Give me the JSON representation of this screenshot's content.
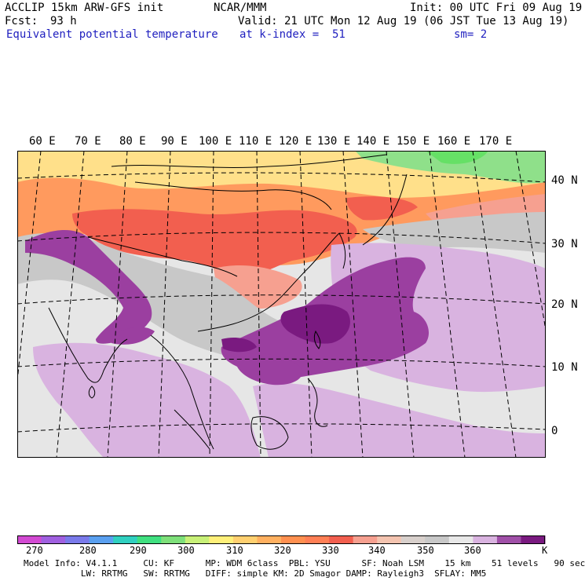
{
  "header": {
    "model": "ACCLIP 15km ARW-GFS init",
    "org": "NCAR/MMM",
    "init": "Init: 00 UTC Fri 09 Aug 19",
    "fcst_label": "Fcst:",
    "fcst_value": "93 h",
    "valid": "Valid: 21 UTC Mon 12 Aug 19 (06 JST Tue 13 Aug 19)",
    "field": "Equivalent potential temperature",
    "level": "at k-index =  51",
    "smooth": "sm= 2"
  },
  "map": {
    "lon_labels": [
      "60 E",
      "70 E",
      "80 E",
      "90 E",
      "100 E",
      "110 E",
      "120 E",
      "130 E",
      "140 E",
      "150 E",
      "160 E",
      "170 E"
    ],
    "lat_labels": [
      "40 N",
      "30 N",
      "20 N",
      "10 N",
      "0"
    ],
    "colors": {
      "background": "#e6e6e6",
      "warm_orange": "#ff7f55",
      "hot_red": "#f25f4f",
      "yellow": "#fff07a",
      "green": "#7ee07a",
      "light_gray": "#d2d2d2",
      "light_purple": "#d9b3e0",
      "purple": "#9b3fa0",
      "dark_purple": "#7a1a80",
      "grid": "#000000"
    }
  },
  "colorbar": {
    "unit": "K",
    "labels": [
      "270",
      "280",
      "290",
      "300",
      "310",
      "320",
      "330",
      "340",
      "350",
      "360"
    ],
    "colors": [
      "#d24ad2",
      "#a060e0",
      "#7a7aea",
      "#5aa0f0",
      "#30d0c0",
      "#40e080",
      "#7ee07a",
      "#c8f078",
      "#fff07a",
      "#ffd070",
      "#ffb060",
      "#ff9050",
      "#ff7f55",
      "#f25f4f",
      "#f6a090",
      "#f4c4b0",
      "#d8d0cc",
      "#c8c8c8",
      "#e8e8e8",
      "#d9b3e0",
      "#a050a8",
      "#7a1a80"
    ]
  },
  "footer": {
    "line1": "Model Info: V4.1.1     CU: KF      MP: WDM 6class  PBL: YSU      SF: Noah LSM    15 km    51 levels   90 sec",
    "line2": "           LW: RRTMG   SW: RRTMG   DIFF: simple KM: 2D Smagor DAMP: Rayleigh3  SFLAY: MM5"
  }
}
